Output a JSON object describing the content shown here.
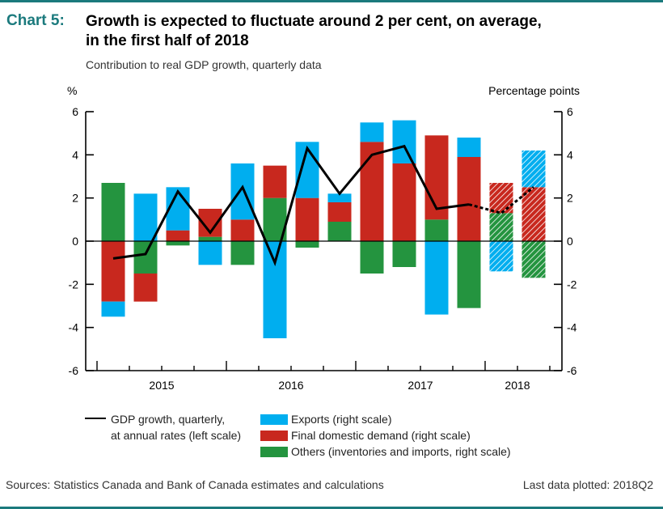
{
  "header": {
    "label": "Chart 5:",
    "title_line1": "Growth is expected to fluctuate around 2 per cent, on average,",
    "title_line2": "in the first half of 2018",
    "subtitle": "Contribution to real GDP growth, quarterly data"
  },
  "footer": {
    "sources": "Sources: Statistics Canada and Bank of Canada estimates and calculations",
    "last_data": "Last data plotted: 2018Q2"
  },
  "colors": {
    "accent": "#1b7a7d",
    "exports": "#00aeef",
    "fdd": "#c8281e",
    "others": "#24943f",
    "gdp": "#000000"
  },
  "chart_data": {
    "type": "bar",
    "stacked": true,
    "title": "Growth is expected to fluctuate around 2 per cent, on average, in the first half of 2018",
    "subtitle": "Contribution to real GDP growth, quarterly data",
    "ylabel_left": "%",
    "ylabel_right": "Percentage points",
    "ylim": [
      -6,
      6
    ],
    "yticks": [
      -6,
      -4,
      -2,
      0,
      2,
      4,
      6
    ],
    "year_labels": [
      "2015",
      "2016",
      "2017",
      "2018"
    ],
    "categories": [
      "2015Q1",
      "2015Q2",
      "2015Q3",
      "2015Q4",
      "2016Q1",
      "2016Q2",
      "2016Q3",
      "2016Q4",
      "2017Q1",
      "2017Q2",
      "2017Q3",
      "2017Q4",
      "2018Q1",
      "2018Q2"
    ],
    "projected": [
      false,
      false,
      false,
      false,
      false,
      false,
      false,
      false,
      false,
      false,
      false,
      false,
      true,
      true
    ],
    "series": [
      {
        "name": "Exports (right scale)",
        "key": "exports",
        "type": "bar",
        "values": [
          -0.7,
          2.2,
          2.0,
          -1.1,
          2.6,
          -4.5,
          2.6,
          0.4,
          0.9,
          2.0,
          -3.4,
          0.9,
          -1.4,
          1.7
        ]
      },
      {
        "name": "Final domestic demand (right scale)",
        "key": "fdd",
        "type": "bar",
        "values": [
          -2.8,
          -1.3,
          0.5,
          1.3,
          1.0,
          1.5,
          2.0,
          0.9,
          4.6,
          3.6,
          3.9,
          3.9,
          1.4,
          2.5
        ]
      },
      {
        "name": "Others (inventories and imports, right scale)",
        "key": "others",
        "type": "bar",
        "values": [
          2.7,
          -1.5,
          -0.2,
          0.2,
          -1.1,
          2.0,
          -0.3,
          0.9,
          -1.5,
          -1.2,
          1.0,
          -3.1,
          1.3,
          -1.7
        ]
      },
      {
        "name": "GDP growth, quarterly, at annual rates (left scale)",
        "key": "gdp",
        "type": "line",
        "values": [
          -0.8,
          -0.6,
          2.3,
          0.4,
          2.5,
          -1.0,
          4.3,
          2.2,
          4.0,
          4.4,
          1.5,
          1.7,
          1.3,
          2.5
        ]
      }
    ],
    "stack_order": {
      "2015Q1": [
        "others",
        "fdd",
        "exports"
      ],
      "default": [
        "others",
        "fdd",
        "exports"
      ]
    },
    "legend": {
      "placement": "bottom",
      "gdp_line1": "GDP growth, quarterly,",
      "gdp_line2": "at annual rates (left scale)",
      "exports": "Exports (right scale)",
      "fdd": "Final domestic demand (right scale)",
      "others": "Others (inventories and imports, right scale)"
    },
    "grid": false
  }
}
